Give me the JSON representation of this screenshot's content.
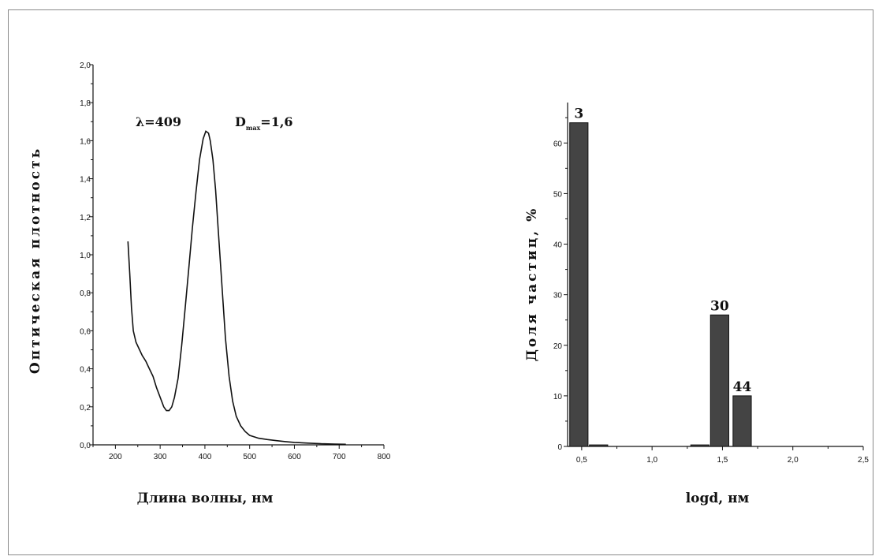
{
  "chart_data": [
    {
      "type": "line",
      "xlabel": "Длина волны, нм",
      "ylabel": "Оптическая плотность",
      "xlim": [
        150,
        800
      ],
      "ylim": [
        0.0,
        2.0
      ],
      "x_ticks": [
        200,
        300,
        400,
        500,
        600,
        700,
        800
      ],
      "x_tick_labels": [
        "200",
        "300",
        "400",
        "500",
        "600",
        "700",
        "800"
      ],
      "y_ticks": [
        0.0,
        0.2,
        0.4,
        0.6,
        0.8,
        1.0,
        1.2,
        1.4,
        1.6,
        1.8,
        2.0
      ],
      "y_tick_labels": [
        "0,0",
        "0,2",
        "0,4",
        "0,6",
        "0,8",
        "1,0",
        "1,2",
        "1,4",
        "1,6",
        "1,8",
        "2,0"
      ],
      "annotations": [
        {
          "text": "λ=409"
        },
        {
          "text": "D",
          "sub": "max",
          "suffix": "=1,6"
        }
      ],
      "series": [
        {
          "x": [
            228,
            232,
            236,
            240,
            246,
            252,
            260,
            268,
            276,
            284,
            292,
            300,
            308,
            314,
            320,
            326,
            332,
            340,
            348,
            356,
            364,
            372,
            380,
            388,
            396,
            402,
            408,
            412,
            418,
            424,
            430,
            438,
            446,
            454,
            462,
            470,
            480,
            490,
            500,
            520,
            540,
            560,
            580,
            600,
            630,
            660,
            690,
            715
          ],
          "y": [
            1.07,
            0.9,
            0.72,
            0.6,
            0.54,
            0.51,
            0.47,
            0.44,
            0.4,
            0.36,
            0.3,
            0.25,
            0.2,
            0.18,
            0.18,
            0.2,
            0.25,
            0.35,
            0.52,
            0.72,
            0.93,
            1.14,
            1.33,
            1.5,
            1.61,
            1.65,
            1.64,
            1.6,
            1.5,
            1.34,
            1.12,
            0.84,
            0.56,
            0.36,
            0.23,
            0.15,
            0.1,
            0.07,
            0.05,
            0.035,
            0.028,
            0.022,
            0.017,
            0.013,
            0.009,
            0.006,
            0.004,
            0.003
          ]
        }
      ]
    },
    {
      "type": "bar",
      "xlabel": "logd, нм",
      "ylabel": "Доля частиц, %",
      "xlim": [
        0.4,
        2.5
      ],
      "ylim": [
        0,
        68
      ],
      "x_ticks": [
        0.5,
        1.0,
        1.5,
        2.0,
        2.5
      ],
      "x_tick_labels": [
        "0,5",
        "1,0",
        "1,5",
        "2,0",
        "2,5"
      ],
      "y_ticks": [
        0,
        10,
        20,
        30,
        40,
        50,
        60
      ],
      "y_tick_labels": [
        "0",
        "10",
        "20",
        "30",
        "40",
        "50",
        "60"
      ],
      "bar_width": 0.13,
      "bars": [
        {
          "x": 0.48,
          "value": 64,
          "label": "3"
        },
        {
          "x": 0.62,
          "value": 0.3,
          "label": ""
        },
        {
          "x": 1.34,
          "value": 0.3,
          "label": ""
        },
        {
          "x": 1.48,
          "value": 26,
          "label": "30"
        },
        {
          "x": 1.64,
          "value": 10,
          "label": "44"
        }
      ],
      "bar_color": "#444444"
    }
  ]
}
